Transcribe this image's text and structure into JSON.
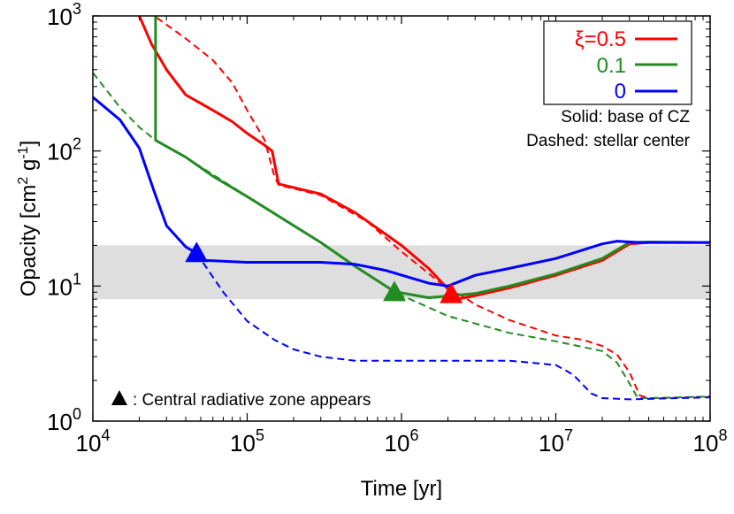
{
  "chart_data": {
    "type": "line",
    "xlabel": "Time [yr]",
    "ylabel_parts": [
      "Opacity [cm",
      "2",
      " g",
      "-1",
      "]"
    ],
    "xscale": "log",
    "yscale": "log",
    "xlim": [
      10000,
      100000000
    ],
    "ylim": [
      1,
      1000
    ],
    "grid": false,
    "x_ticks": [
      {
        "value": 10000,
        "base": "10",
        "exp": "4"
      },
      {
        "value": 100000,
        "base": "10",
        "exp": "5"
      },
      {
        "value": 1000000,
        "base": "10",
        "exp": "6"
      },
      {
        "value": 10000000,
        "base": "10",
        "exp": "7"
      },
      {
        "value": 100000000,
        "base": "10",
        "exp": "8"
      }
    ],
    "y_ticks": [
      {
        "value": 1,
        "base": "10",
        "exp": "0"
      },
      {
        "value": 10,
        "base": "10",
        "exp": "1"
      },
      {
        "value": 100,
        "base": "10",
        "exp": "2"
      },
      {
        "value": 1000,
        "base": "10",
        "exp": "3"
      }
    ],
    "shaded_band": {
      "y_range": [
        8,
        20
      ],
      "color": "#dedede"
    },
    "legend": {
      "position": "top-right",
      "entries": [
        {
          "label": "ξ=0.5",
          "color": "#ff0000"
        },
        {
          "label": "0.1",
          "color": "#228b22"
        },
        {
          "label": "0",
          "color": "#0000ff"
        }
      ]
    },
    "annotations": {
      "solid_note": "Solid: base of CZ",
      "dashed_note": "Dashed: stellar center",
      "triangle_note": ": Central radiative zone appears"
    },
    "series": [
      {
        "key": "red_solid",
        "color": "#ff0000",
        "style": "solid",
        "x": [
          10000,
          20000,
          24000,
          30000,
          40000,
          60000,
          80000,
          100000,
          130000,
          145000,
          160000,
          300000,
          500000,
          1000000,
          1500000,
          2000000,
          2300000,
          3000000,
          5000000,
          10000000,
          20000000,
          30000000,
          40000000,
          100000000
        ],
        "y": [
          3000,
          1000,
          620,
          400,
          260,
          200,
          165,
          135,
          110,
          100,
          57,
          48,
          35,
          20,
          13.5,
          9.5,
          8.0,
          8.5,
          9.7,
          12,
          15.5,
          20.5,
          21,
          21
        ]
      },
      {
        "key": "red_dashed",
        "color": "#ff0000",
        "style": "dashed",
        "x": [
          10000,
          25000,
          40000,
          60000,
          80000,
          100000,
          130000,
          150000,
          160000,
          300000,
          600000,
          1000000,
          2000000,
          2500000,
          3000000,
          5000000,
          10000000,
          15000000,
          20000000,
          25000000,
          30000000,
          35000000,
          40000000,
          60000000,
          100000000
        ],
        "y": [
          3000,
          1000,
          680,
          470,
          320,
          200,
          120,
          65,
          56,
          47,
          30,
          18,
          9.5,
          8.4,
          7.3,
          5.6,
          4.3,
          4.0,
          3.6,
          3.1,
          2.3,
          1.55,
          1.48,
          1.49,
          1.52
        ]
      },
      {
        "key": "green_solid",
        "color": "#228b22",
        "style": "solid",
        "x": [
          25500,
          25500,
          40000,
          60000,
          100000,
          300000,
          500000,
          900000,
          1500000,
          3000000,
          5000000,
          10000000,
          20000000,
          30000000,
          40000000,
          100000000
        ],
        "y": [
          1000,
          120,
          90,
          65,
          46,
          21,
          14,
          9.1,
          8.2,
          8.8,
          10,
          12.3,
          16,
          21,
          21.2,
          21
        ]
      },
      {
        "key": "green_dashed",
        "color": "#228b22",
        "style": "dashed",
        "x": [
          10000,
          15000,
          20000,
          25500,
          40000,
          100000,
          300000,
          900000,
          2000000,
          5000000,
          10000000,
          20000000,
          25000000,
          30000000,
          34000000,
          40000000,
          100000000
        ],
        "y": [
          380,
          210,
          150,
          120,
          90,
          46,
          21,
          9.0,
          6.0,
          4.5,
          3.9,
          3.3,
          2.7,
          1.9,
          1.48,
          1.48,
          1.52
        ]
      },
      {
        "key": "blue_solid",
        "color": "#0000ff",
        "style": "solid",
        "x": [
          10000,
          15000,
          20000,
          25000,
          30000,
          40000,
          47000,
          52000,
          100000,
          300000,
          500000,
          800000,
          1500000,
          2000000,
          3000000,
          5000000,
          10000000,
          20000000,
          25000000,
          35000000,
          100000000
        ],
        "y": [
          250,
          170,
          105,
          50,
          28,
          19.5,
          17.5,
          15.5,
          15,
          15,
          14.5,
          13,
          10.5,
          10,
          12,
          13.5,
          16,
          20.5,
          21.5,
          21,
          21
        ]
      },
      {
        "key": "blue_dashed",
        "color": "#0000ff",
        "style": "dashed",
        "x": [
          47000,
          70000,
          100000,
          150000,
          200000,
          300000,
          500000,
          1000000,
          2000000,
          5000000,
          10000000,
          13000000,
          17000000,
          20000000,
          30000000,
          100000000
        ],
        "y": [
          17.5,
          9,
          5.5,
          4.0,
          3.4,
          3.0,
          2.8,
          2.8,
          2.8,
          2.8,
          2.6,
          2.2,
          1.6,
          1.48,
          1.45,
          1.5
        ]
      }
    ],
    "markers": [
      {
        "x": 47000,
        "y": 17.5,
        "color": "#0000ff"
      },
      {
        "x": 900000,
        "y": 9.0,
        "color": "#228b22"
      },
      {
        "x": 2100000,
        "y": 8.7,
        "color": "#ff0000"
      }
    ]
  }
}
